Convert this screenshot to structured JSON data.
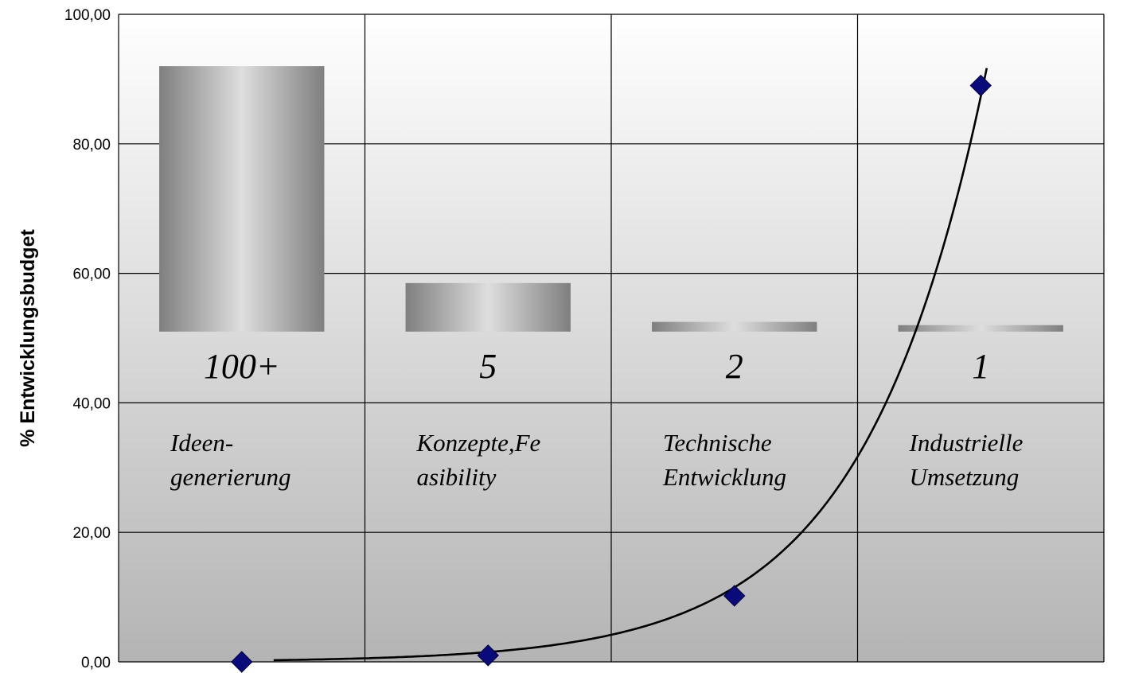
{
  "chart_data": {
    "type": "line",
    "title": "",
    "xlabel": "",
    "ylabel": "% Entwicklungsbudget",
    "ylim": [
      0,
      100
    ],
    "y_ticks": [
      "0,00",
      "20,00",
      "40,00",
      "60,00",
      "80,00",
      "100,00"
    ],
    "grid": true,
    "legend": "none",
    "stages": [
      {
        "count": "100+",
        "label_lines": [
          "Ideen-",
          "generierung"
        ],
        "bar_value": 92
      },
      {
        "count": "5",
        "label_lines": [
          "Konzepte,Fe",
          "asibility"
        ],
        "bar_value": 58.5
      },
      {
        "count": "2",
        "label_lines": [
          "Technische",
          "Entwicklung"
        ],
        "bar_value": 52.5
      },
      {
        "count": "1",
        "label_lines": [
          "Industrielle",
          "Umsetzung"
        ],
        "bar_value": 52
      }
    ],
    "bar_base": 51,
    "series": [
      {
        "values": [
          0.0,
          1.0,
          10.2,
          89.0
        ]
      }
    ],
    "trendline": "exponential",
    "colors": {
      "marker": "#0a0a7a",
      "line": "#000000",
      "bar_dark": "#7f7f7f",
      "bar_light": "#dedede",
      "bg_top": "#ffffff",
      "bg_bottom": "#b4b4b4"
    }
  }
}
